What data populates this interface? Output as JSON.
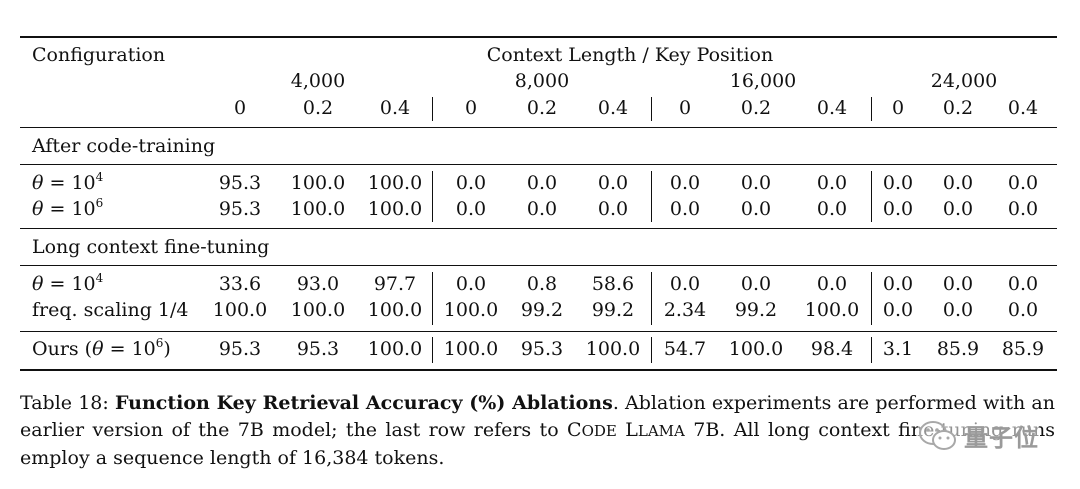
{
  "table": {
    "header": {
      "configuration": "Configuration",
      "context_title": "Context Length / Key Position",
      "groups": [
        "4,000",
        "8,000",
        "16,000",
        "24,000"
      ],
      "positions": [
        "0",
        "0.2",
        "0.4",
        "0",
        "0.2",
        "0.4",
        "0",
        "0.2",
        "0.4",
        "0",
        "0.2",
        "0.4"
      ]
    },
    "sections": [
      {
        "title": "After code-training",
        "rows": [
          {
            "theta_base": "10",
            "theta_exp": "4",
            "values": [
              "95.3",
              "100.0",
              "100.0",
              "0.0",
              "0.0",
              "0.0",
              "0.0",
              "0.0",
              "0.0",
              "0.0",
              "0.0",
              "0.0"
            ]
          },
          {
            "theta_base": "10",
            "theta_exp": "6",
            "values": [
              "95.3",
              "100.0",
              "100.0",
              "0.0",
              "0.0",
              "0.0",
              "0.0",
              "0.0",
              "0.0",
              "0.0",
              "0.0",
              "0.0"
            ]
          }
        ]
      },
      {
        "title": "Long context fine-tuning",
        "rows": [
          {
            "theta_base": "10",
            "theta_exp": "4",
            "values": [
              "33.6",
              "93.0",
              "97.7",
              "0.0",
              "0.8",
              "58.6",
              "0.0",
              "0.0",
              "0.0",
              "0.0",
              "0.0",
              "0.0"
            ]
          },
          {
            "label": "freq. scaling 1/4",
            "values": [
              "100.0",
              "100.0",
              "100.0",
              "100.0",
              "99.2",
              "99.2",
              "2.34",
              "99.2",
              "100.0",
              "0.0",
              "0.0",
              "0.0"
            ]
          }
        ]
      }
    ],
    "ours": {
      "label_prefix": "Ours (",
      "theta_base": "10",
      "theta_exp": "6",
      "label_suffix": ")",
      "values": [
        "95.3",
        "95.3",
        "100.0",
        "100.0",
        "95.3",
        "100.0",
        "54.7",
        "100.0",
        "98.4",
        "3.1",
        "85.9",
        "85.9"
      ]
    }
  },
  "caption": {
    "table_number": "Table 18:",
    "title_bold": "Function Key Retrieval Accuracy (%) Ablations",
    "text_1": ". Ablation experiments are performed with an earlier version of the 7B model; the last row refers to ",
    "model_c": "C",
    "model_ode": "ODE",
    "model_l": "L",
    "model_lama": "LAMA",
    "text_2": " 7B. All long context fine-tuning runs employ a sequence length of 16,384 tokens."
  },
  "watermark": {
    "text": "量子位",
    "icon": "wechat-icon",
    "color": "#9a9a9a"
  }
}
